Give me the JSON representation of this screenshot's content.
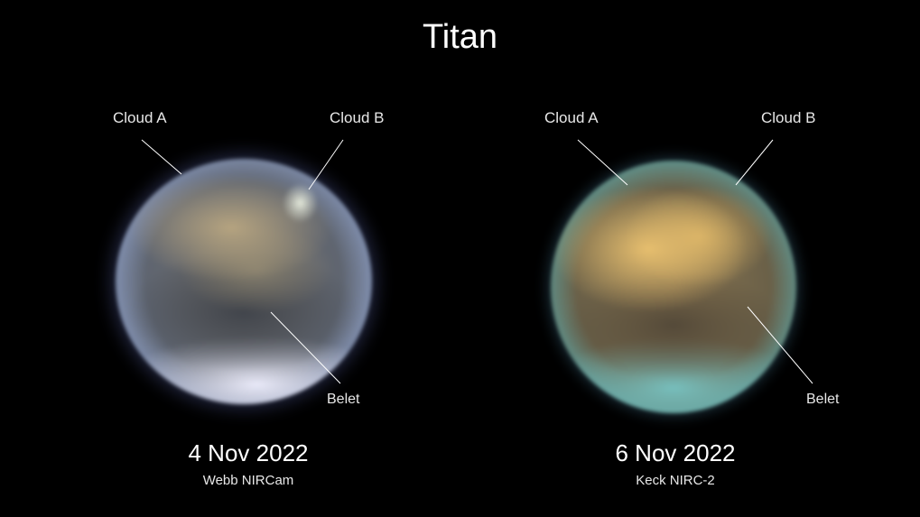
{
  "title": "Titan",
  "panels": [
    {
      "date": "4 Nov 2022",
      "instrument": "Webb NIRCam",
      "labels": {
        "cloud_a": "Cloud A",
        "cloud_b": "Cloud B",
        "belet": "Belet"
      }
    },
    {
      "date": "6 Nov 2022",
      "instrument": "Keck NIRC-2",
      "labels": {
        "cloud_a": "Cloud A",
        "cloud_b": "Cloud B",
        "belet": "Belet"
      }
    }
  ]
}
